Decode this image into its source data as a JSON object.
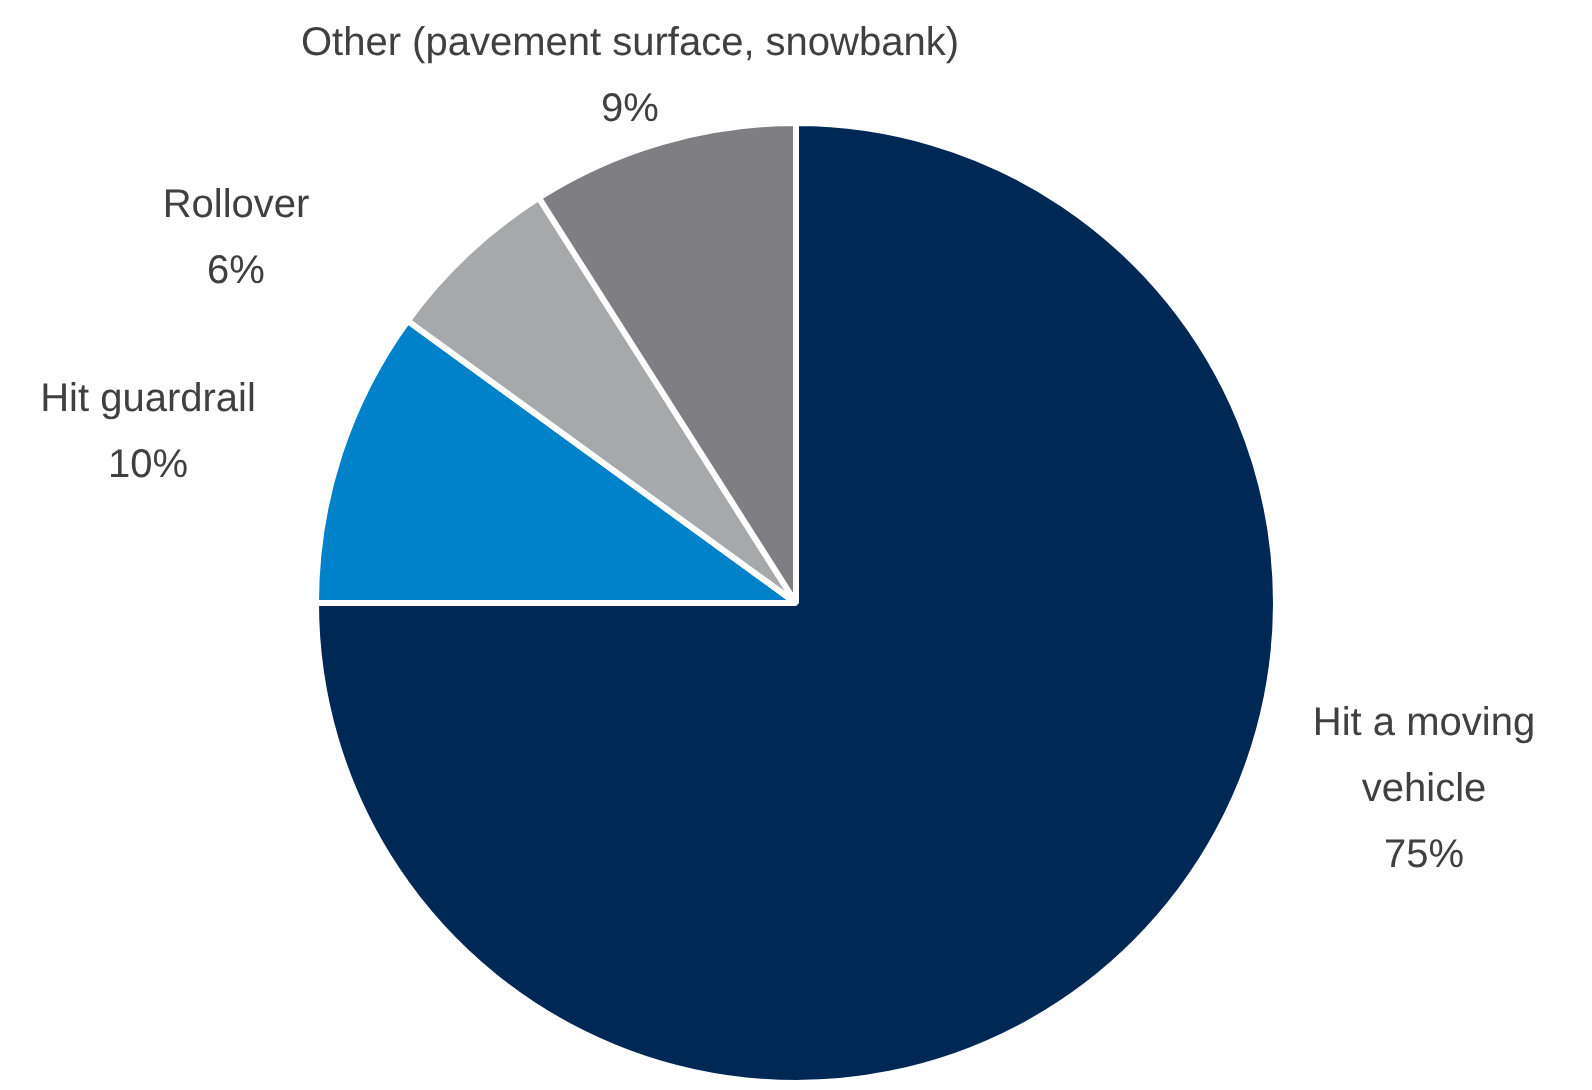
{
  "chart_data": {
    "type": "pie",
    "categories": [
      "Hit a moving vehicle",
      "Hit guardrail",
      "Rollover",
      "Other (pavement surface, snowbank)"
    ],
    "values": [
      75,
      10,
      6,
      9
    ],
    "value_labels": [
      "75%",
      "10%",
      "6%",
      "9%"
    ],
    "colors": [
      "#002855",
      "#0082ca",
      "#a7a8aa",
      "#7f7f83"
    ],
    "legend": false
  }
}
